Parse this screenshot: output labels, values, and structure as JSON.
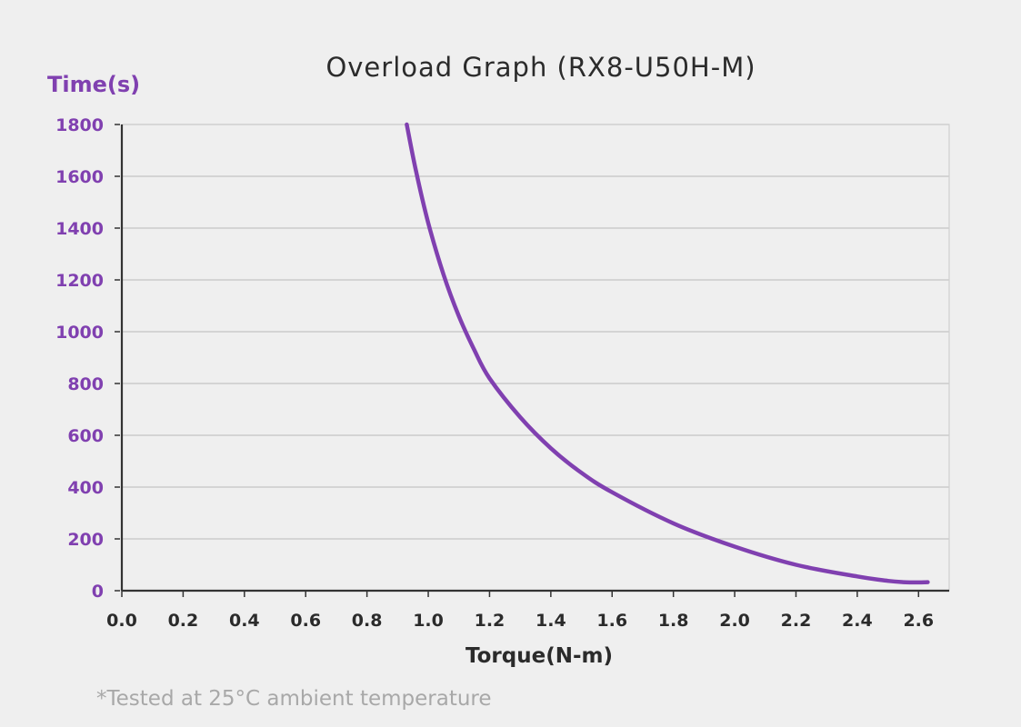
{
  "chart_data": {
    "type": "line",
    "title": "Overload Graph  (RX8-U50H-M)",
    "xlabel": "Torque(N-m)",
    "ylabel": "Time(s)",
    "xlim": [
      0,
      2.7
    ],
    "ylim": [
      0,
      1800
    ],
    "xticks": [
      "0.0",
      "0.2",
      "0.4",
      "0.6",
      "0.8",
      "1.0",
      "1.2",
      "1.4",
      "1.6",
      "1.8",
      "2.0",
      "2.2",
      "2.4",
      "2.6"
    ],
    "yticks": [
      "0",
      "200",
      "400",
      "600",
      "800",
      "1000",
      "1200",
      "1400",
      "1600",
      "1800"
    ],
    "grid": "horizontal",
    "series": [
      {
        "x": [
          0.93,
          0.96,
          1.0,
          1.05,
          1.1,
          1.15,
          1.2,
          1.3,
          1.4,
          1.5,
          1.6,
          1.8,
          2.0,
          2.2,
          2.4,
          2.5,
          2.55,
          2.6,
          2.63
        ],
        "y": [
          1800,
          1620,
          1420,
          1220,
          1060,
          930,
          820,
          670,
          550,
          455,
          380,
          260,
          170,
          100,
          55,
          38,
          33,
          32,
          33
        ]
      }
    ],
    "note": "*Tested at 25°C ambient temperature"
  },
  "colors": {
    "line": "#8040b0",
    "ytext": "#8040b0",
    "axis": "#333333",
    "grid": "#c4c4c4",
    "background": "#efefef"
  }
}
